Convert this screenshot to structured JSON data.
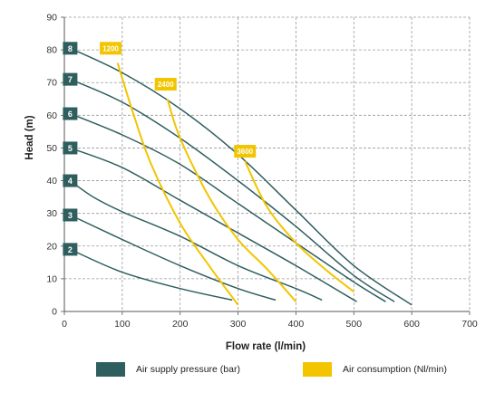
{
  "chart_data": {
    "type": "line",
    "title": "",
    "xlabel": "Flow rate (l/min)",
    "ylabel": "Head (m)",
    "xlim": [
      0,
      700
    ],
    "ylim": [
      0,
      90
    ],
    "x_ticks": [
      "0",
      "100",
      "200",
      "300",
      "400",
      "500",
      "600",
      "700"
    ],
    "y_ticks": [
      "0",
      "10",
      "20",
      "30",
      "40",
      "50",
      "60",
      "70",
      "80",
      "90"
    ],
    "grid": true,
    "legend_position": "bottom",
    "colors": {
      "pressure": "#2f5e5f",
      "consumption": "#f2c500",
      "grid": "#9a9a9a"
    },
    "legend": [
      {
        "label": "Air supply pressure (bar)",
        "color": "#2f5e5f"
      },
      {
        "label": "Air consumption (Nl/min)",
        "color": "#f2c500"
      }
    ],
    "pressure_curves": [
      {
        "name": "2",
        "points": [
          [
            10,
            19
          ],
          [
            100,
            12
          ],
          [
            200,
            7
          ],
          [
            290,
            3.5
          ]
        ]
      },
      {
        "name": "3",
        "points": [
          [
            10,
            29.5
          ],
          [
            100,
            22
          ],
          [
            200,
            14
          ],
          [
            300,
            7
          ],
          [
            365,
            3.5
          ]
        ]
      },
      {
        "name": "4",
        "points": [
          [
            10,
            40
          ],
          [
            50,
            35
          ],
          [
            100,
            30.5
          ],
          [
            200,
            23
          ],
          [
            300,
            14
          ],
          [
            400,
            7
          ],
          [
            445,
            3.5
          ]
        ]
      },
      {
        "name": "5",
        "points": [
          [
            10,
            50
          ],
          [
            100,
            44
          ],
          [
            200,
            34
          ],
          [
            300,
            24
          ],
          [
            400,
            14
          ],
          [
            505,
            3
          ]
        ]
      },
      {
        "name": "6",
        "points": [
          [
            10,
            60.5
          ],
          [
            100,
            54
          ],
          [
            200,
            45
          ],
          [
            300,
            33
          ],
          [
            400,
            21
          ],
          [
            500,
            9
          ],
          [
            555,
            3
          ]
        ]
      },
      {
        "name": "7",
        "points": [
          [
            10,
            71
          ],
          [
            100,
            64
          ],
          [
            200,
            53
          ],
          [
            300,
            40
          ],
          [
            400,
            26
          ],
          [
            500,
            11
          ],
          [
            570,
            3
          ]
        ]
      },
      {
        "name": "8",
        "points": [
          [
            10,
            80.5
          ],
          [
            100,
            73
          ],
          [
            200,
            62
          ],
          [
            300,
            48
          ],
          [
            400,
            31
          ],
          [
            500,
            14
          ],
          [
            600,
            2
          ]
        ]
      }
    ],
    "consumption_curves": [
      {
        "name": "1200",
        "label_at": [
          80,
          80.5
        ],
        "points": [
          [
            92,
            76
          ],
          [
            120,
            60
          ],
          [
            150,
            45
          ],
          [
            200,
            27
          ],
          [
            250,
            14
          ],
          [
            300,
            2
          ]
        ]
      },
      {
        "name": "2400",
        "label_at": [
          175,
          69.5
        ],
        "points": [
          [
            178,
            65
          ],
          [
            200,
            53
          ],
          [
            250,
            35
          ],
          [
            300,
            22
          ],
          [
            350,
            13
          ],
          [
            400,
            3
          ]
        ]
      },
      {
        "name": "3600",
        "label_at": [
          312,
          49
        ],
        "points": [
          [
            312,
            46
          ],
          [
            350,
            32
          ],
          [
            400,
            21
          ],
          [
            450,
            13
          ],
          [
            500,
            6
          ]
        ]
      }
    ]
  }
}
